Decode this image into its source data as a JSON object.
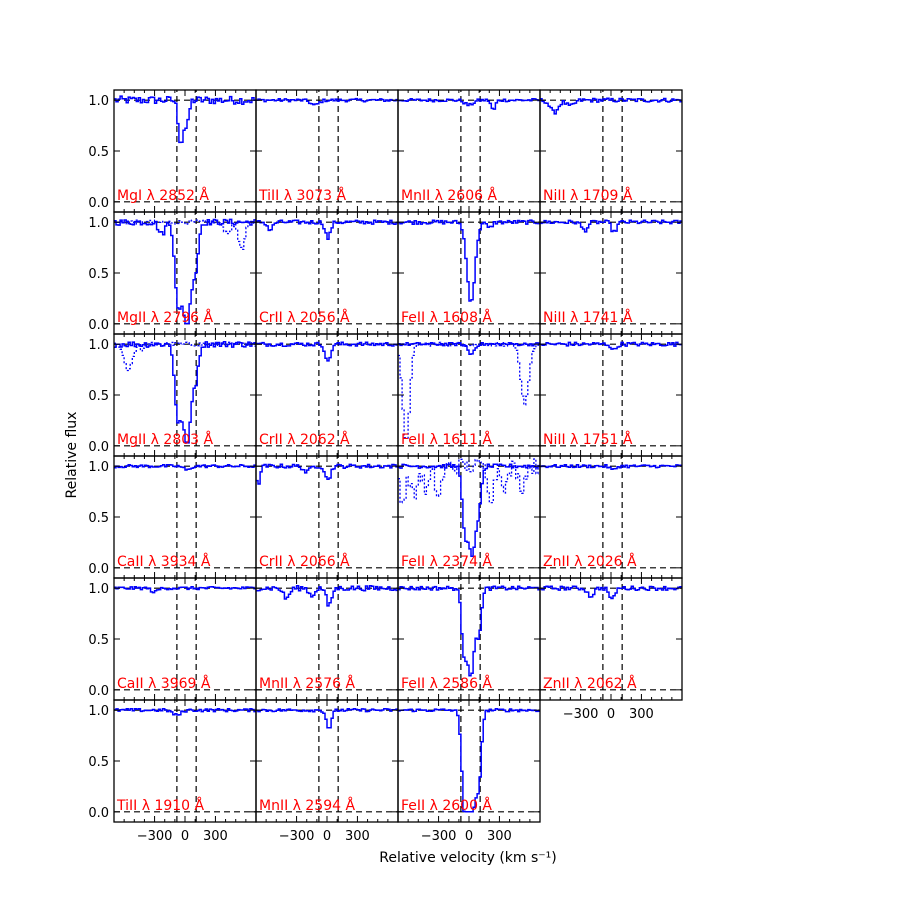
{
  "colors": {
    "spectrum": "#0000ff",
    "label": "#ff0000",
    "axes": "#000000",
    "background": "#ffffff"
  },
  "chart_data": {
    "type": "line",
    "xlabel": "Relative velocity (km s⁻¹)",
    "ylabel": "Relative flux",
    "xlim": [
      -700,
      700
    ],
    "ylim": [
      -0.1,
      1.1
    ],
    "xticks": [
      -300,
      0,
      300
    ],
    "xtick_labels": [
      "−300",
      "0",
      "300"
    ],
    "yticks": [
      0.0,
      0.5,
      1.0
    ],
    "ytick_labels": [
      "0.0",
      "0.5",
      "1.0"
    ],
    "reference_lines": {
      "velocity": [
        -80,
        110
      ],
      "flux_levels": [
        0.0,
        1.0
      ]
    },
    "grid": false,
    "panels": [
      {
        "label": "MgI λ 2852 Å",
        "row": 0,
        "col": 0,
        "continuum": 1.0,
        "noise": 0.04,
        "lines": [
          {
            "v": -40,
            "depth": 0.42,
            "width": 25
          },
          {
            "v": 20,
            "depth": 0.25,
            "width": 20
          }
        ]
      },
      {
        "label": "TiII λ 3073 Å",
        "row": 0,
        "col": 1,
        "continuum": 1.0,
        "noise": 0.015,
        "lines": [
          {
            "v": -120,
            "depth": 0.05,
            "width": 40
          }
        ]
      },
      {
        "label": "MnII λ 2606 Å",
        "row": 0,
        "col": 2,
        "continuum": 1.0,
        "noise": 0.015,
        "lines": [
          {
            "v": 0,
            "depth": 0.05,
            "width": 40
          },
          {
            "v": 240,
            "depth": 0.1,
            "width": 20
          }
        ]
      },
      {
        "label": "NiII λ 1709 Å",
        "row": 0,
        "col": 3,
        "continuum": 1.0,
        "noise": 0.02,
        "lines": [
          {
            "v": -560,
            "depth": 0.12,
            "width": 40
          },
          {
            "v": -400,
            "depth": 0.06,
            "width": 40
          }
        ]
      },
      {
        "label": "MgII λ 2796 Å",
        "row": 1,
        "col": 0,
        "continuum": 1.0,
        "noise": 0.03,
        "lines": [
          {
            "v": -70,
            "depth": 0.72,
            "width": 30
          },
          {
            "v": 20,
            "depth": 1.0,
            "width": 45
          },
          {
            "v": 110,
            "depth": 0.35,
            "width": 25
          },
          {
            "v": -230,
            "depth": 0.12,
            "width": 30
          }
        ],
        "companion": {
          "lines": [
            {
              "v": 560,
              "depth": 0.28,
              "width": 30
            },
            {
              "v": 420,
              "depth": 0.1,
              "width": 40
            }
          ]
        }
      },
      {
        "label": "CrII λ 2056 Å",
        "row": 1,
        "col": 1,
        "continuum": 1.0,
        "noise": 0.02,
        "lines": [
          {
            "v": 10,
            "depth": 0.16,
            "width": 25
          },
          {
            "v": -560,
            "depth": 0.08,
            "width": 25
          }
        ]
      },
      {
        "label": "FeII λ 1608 Å",
        "row": 1,
        "col": 2,
        "continuum": 1.0,
        "noise": 0.02,
        "lines": [
          {
            "v": 20,
            "depth": 0.78,
            "width": 40
          },
          {
            "v": 200,
            "depth": 0.06,
            "width": 25
          }
        ]
      },
      {
        "label": "NiII λ 1741 Å",
        "row": 1,
        "col": 3,
        "continuum": 1.0,
        "noise": 0.02,
        "lines": [
          {
            "v": 30,
            "depth": 0.1,
            "width": 25
          },
          {
            "v": -260,
            "depth": 0.08,
            "width": 30
          }
        ]
      },
      {
        "label": "MgII λ 2803 Å",
        "row": 2,
        "col": 0,
        "continuum": 1.0,
        "noise": 0.03,
        "lines": [
          {
            "v": -70,
            "depth": 0.7,
            "width": 30
          },
          {
            "v": 20,
            "depth": 1.0,
            "width": 40
          },
          {
            "v": 110,
            "depth": 0.3,
            "width": 25
          }
        ],
        "companion": {
          "lines": [
            {
              "v": -560,
              "depth": 0.25,
              "width": 40
            },
            {
              "v": -420,
              "depth": 0.05,
              "width": 30
            }
          ]
        }
      },
      {
        "label": "CrII λ 2062 Å",
        "row": 2,
        "col": 1,
        "continuum": 1.0,
        "noise": 0.02,
        "lines": [
          {
            "v": 10,
            "depth": 0.18,
            "width": 25
          }
        ]
      },
      {
        "label": "FeII λ 1611 Å",
        "row": 2,
        "col": 2,
        "continuum": 1.0,
        "noise": 0.015,
        "lines": [
          {
            "v": 20,
            "depth": 0.1,
            "width": 30
          }
        ],
        "companion": {
          "lines": [
            {
              "v": -620,
              "depth": 0.95,
              "width": 35
            },
            {
              "v": 550,
              "depth": 0.6,
              "width": 40
            }
          ]
        }
      },
      {
        "label": "NiII λ 1751 Å",
        "row": 2,
        "col": 3,
        "continuum": 1.0,
        "noise": 0.02,
        "lines": [
          {
            "v": 30,
            "depth": 0.06,
            "width": 25
          }
        ]
      },
      {
        "label": "CaII λ 3934 Å",
        "row": 3,
        "col": 0,
        "continuum": 1.0,
        "noise": 0.015,
        "lines": [
          {
            "v": 20,
            "depth": 0.04,
            "width": 30
          }
        ]
      },
      {
        "label": "CrII λ 2066 Å",
        "row": 3,
        "col": 1,
        "continuum": 1.0,
        "noise": 0.02,
        "lines": [
          {
            "v": -680,
            "depth": 0.18,
            "width": 20
          },
          {
            "v": 10,
            "depth": 0.14,
            "width": 25
          },
          {
            "v": -200,
            "depth": 0.06,
            "width": 30
          }
        ]
      },
      {
        "label": "FeII λ 2374 Å",
        "row": 3,
        "col": 2,
        "continuum": 1.0,
        "noise": 0.02,
        "lines": [
          {
            "v": -40,
            "depth": 0.6,
            "width": 25
          },
          {
            "v": 30,
            "depth": 0.88,
            "width": 35
          },
          {
            "v": 100,
            "depth": 0.35,
            "width": 25
          }
        ],
        "companion": {
          "noise": 0.08,
          "lines": [
            {
              "v": -650,
              "depth": 0.35,
              "width": 30
            },
            {
              "v": -540,
              "depth": 0.3,
              "width": 30
            },
            {
              "v": -420,
              "depth": 0.25,
              "width": 30
            },
            {
              "v": -300,
              "depth": 0.3,
              "width": 30
            },
            {
              "v": 220,
              "depth": 0.3,
              "width": 30
            },
            {
              "v": 360,
              "depth": 0.2,
              "width": 30
            },
            {
              "v": 520,
              "depth": 0.2,
              "width": 30
            }
          ]
        }
      },
      {
        "label": "ZnII λ 2026 Å",
        "row": 3,
        "col": 3,
        "continuum": 1.0,
        "noise": 0.015,
        "lines": [
          {
            "v": 20,
            "depth": 0.04,
            "width": 25
          }
        ]
      },
      {
        "label": "CaII λ 3969 Å",
        "row": 4,
        "col": 0,
        "continuum": 1.0,
        "noise": 0.015,
        "lines": [
          {
            "v": -300,
            "depth": 0.04,
            "width": 30
          }
        ]
      },
      {
        "label": "MnII λ 2576 Å",
        "row": 4,
        "col": 1,
        "continuum": 1.0,
        "noise": 0.025,
        "lines": [
          {
            "v": 20,
            "depth": 0.18,
            "width": 25
          },
          {
            "v": -400,
            "depth": 0.1,
            "width": 30
          },
          {
            "v": -150,
            "depth": 0.08,
            "width": 25
          }
        ]
      },
      {
        "label": "FeII λ 2586 Å",
        "row": 4,
        "col": 2,
        "continuum": 1.0,
        "noise": 0.02,
        "lines": [
          {
            "v": -50,
            "depth": 0.55,
            "width": 25
          },
          {
            "v": 20,
            "depth": 0.85,
            "width": 35
          },
          {
            "v": 100,
            "depth": 0.4,
            "width": 25
          }
        ]
      },
      {
        "label": "ZnII λ 2062 Å",
        "row": 4,
        "col": 3,
        "continuum": 1.0,
        "noise": 0.02,
        "lines": [
          {
            "v": 10,
            "depth": 0.12,
            "width": 25
          },
          {
            "v": -200,
            "depth": 0.08,
            "width": 30
          }
        ]
      },
      {
        "label": "TiII λ 1910 Å",
        "row": 5,
        "col": 0,
        "continuum": 1.0,
        "noise": 0.015,
        "lines": [
          {
            "v": -80,
            "depth": 0.05,
            "width": 40
          }
        ]
      },
      {
        "label": "MnII λ 2594 Å",
        "row": 5,
        "col": 1,
        "continuum": 1.0,
        "noise": 0.015,
        "lines": [
          {
            "v": 20,
            "depth": 0.18,
            "width": 25
          }
        ]
      },
      {
        "label": "FeII λ 2600 Å",
        "row": 5,
        "col": 2,
        "continuum": 1.0,
        "noise": 0.015,
        "lines": [
          {
            "v": -40,
            "depth": 0.9,
            "width": 30
          },
          {
            "v": 30,
            "depth": 1.0,
            "width": 40
          },
          {
            "v": 100,
            "depth": 0.55,
            "width": 25
          }
        ]
      }
    ]
  }
}
